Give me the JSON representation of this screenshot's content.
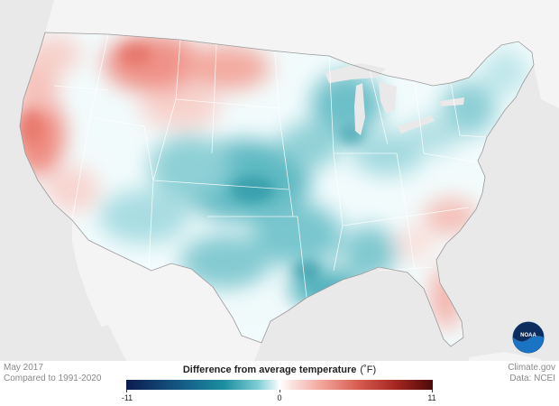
{
  "info": {
    "date": "May 2017",
    "baseline": "Compared to 1991-2020",
    "source": "Climate.gov",
    "data_credit": "Data: NCEI"
  },
  "legend": {
    "title": "Difference from average temperature",
    "units": "(˚F)",
    "min_label": "-11",
    "mid_label": "0",
    "max_label": "11",
    "colors": {
      "cold_extreme": "#0c1b4f",
      "cold": "#1c8fa0",
      "neutral": "#ffffff",
      "warm": "#f2a39a",
      "warm_extreme": "#4c0a0a"
    }
  },
  "logo": {
    "text": "NOAA",
    "icon": "noaa-logo"
  },
  "map": {
    "background": "#e9e9e9",
    "land_outside": "#f7f7f7",
    "region": "Contiguous United States"
  }
}
